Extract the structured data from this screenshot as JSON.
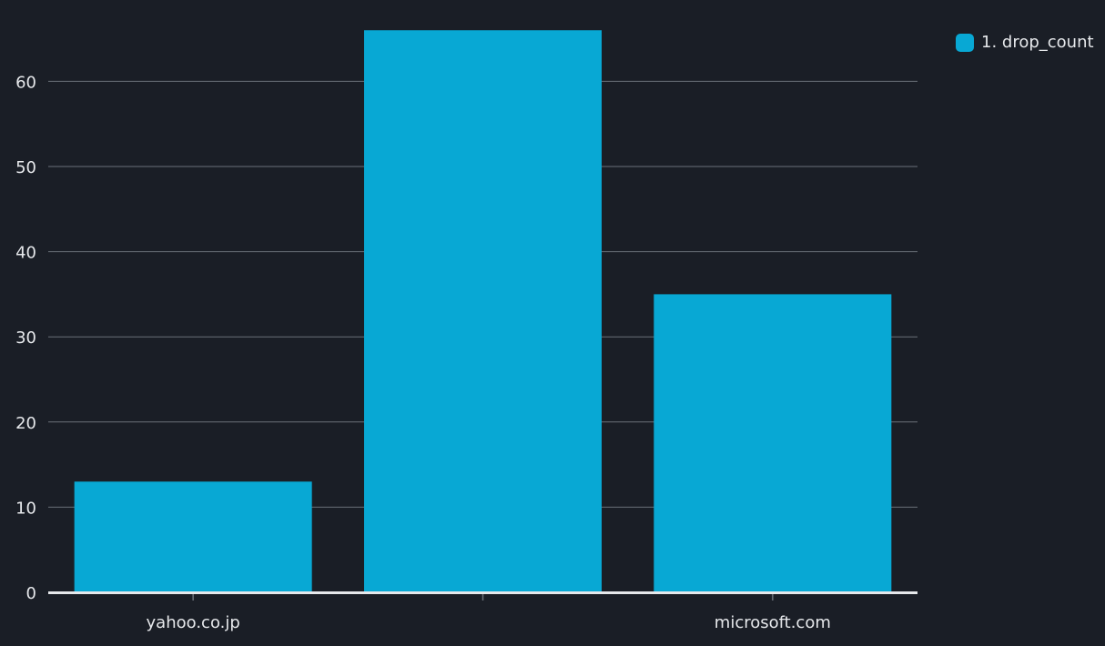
{
  "chart_data": {
    "type": "bar",
    "categories": [
      "yahoo.co.jp",
      "",
      "microsoft.com"
    ],
    "series": [
      {
        "name": "1. drop_count",
        "values": [
          13,
          66,
          35
        ]
      }
    ],
    "y_ticks": [
      "0",
      "10",
      "20",
      "30",
      "40",
      "50",
      "60"
    ],
    "ylim": [
      0,
      70
    ],
    "grid": true,
    "legend_position": "top-right",
    "title": "",
    "xlabel": "",
    "ylabel": ""
  },
  "colors": {
    "background": "#1a1e26",
    "bar": "#08a8d4",
    "grid": "#6b7079",
    "baseline": "#e6e8eb",
    "text": "#e6e8eb"
  }
}
